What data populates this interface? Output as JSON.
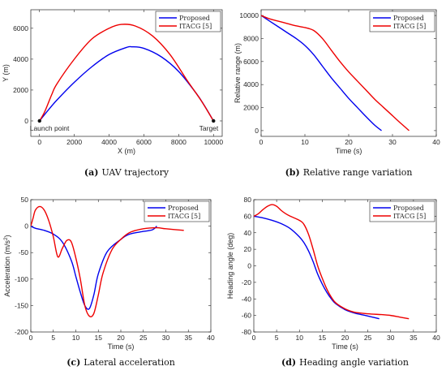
{
  "colors": {
    "proposed": "#0000ee",
    "itacg": "#ee0000"
  },
  "chart_data": [
    {
      "id": "a",
      "type": "line",
      "caption_letter": "(a)",
      "caption_text": "UAV trajectory",
      "xlabel": "X (m)",
      "ylabel": "Y (m)",
      "xlim": [
        -500,
        10500
      ],
      "ylim": [
        -1000,
        7200
      ],
      "xticks": [
        0,
        2000,
        4000,
        6000,
        8000,
        10000
      ],
      "yticks": [
        0,
        2000,
        4000,
        6000
      ],
      "legend": "top-right",
      "series": [
        {
          "name": "Proposed",
          "color_key": "proposed",
          "x": [
            0,
            500,
            1000,
            2000,
            3000,
            4000,
            5000,
            5300,
            6000,
            7000,
            8000,
            9000,
            9500,
            10000
          ],
          "y": [
            0,
            700,
            1350,
            2500,
            3500,
            4300,
            4760,
            4800,
            4700,
            4150,
            3200,
            1800,
            950,
            0
          ]
        },
        {
          "name": "ITACG [5]",
          "color_key": "itacg",
          "x": [
            0,
            300,
            700,
            1000,
            2000,
            3000,
            4000,
            4700,
            5500,
            6500,
            7500,
            8500,
            9300,
            10000
          ],
          "y": [
            0,
            600,
            1700,
            2400,
            4000,
            5300,
            6000,
            6250,
            6150,
            5500,
            4300,
            2600,
            1300,
            0
          ]
        }
      ],
      "annotations": [
        {
          "text": "Launch point",
          "x": 0,
          "y": 0,
          "anchor": "below-right"
        },
        {
          "text": "Target",
          "x": 10000,
          "y": 0,
          "anchor": "below-left"
        }
      ]
    },
    {
      "id": "b",
      "type": "line",
      "caption_letter": "(b)",
      "caption_text": "Relative range variation",
      "xlabel": "Time (s)",
      "ylabel": "Relative range (m)",
      "xlim": [
        0,
        40
      ],
      "ylim": [
        -500,
        10500
      ],
      "xticks": [
        0,
        10,
        20,
        30,
        40
      ],
      "yticks": [
        0,
        2000,
        4000,
        6000,
        8000,
        10000
      ],
      "legend": "top-right",
      "series": [
        {
          "name": "Proposed",
          "color_key": "proposed",
          "x": [
            0,
            2,
            4,
            6,
            8,
            10,
            12,
            14,
            16,
            18,
            20,
            22,
            24,
            26,
            27.5
          ],
          "y": [
            10000,
            9500,
            9000,
            8500,
            8000,
            7400,
            6600,
            5600,
            4600,
            3700,
            2800,
            2000,
            1200,
            450,
            0
          ]
        },
        {
          "name": "ITACG [5]",
          "color_key": "itacg",
          "x": [
            0,
            2,
            4,
            6,
            8,
            10,
            12,
            14,
            16,
            18,
            20,
            22,
            24,
            26,
            28,
            30,
            32,
            33.8
          ],
          "y": [
            10000,
            9700,
            9500,
            9300,
            9100,
            8950,
            8700,
            8000,
            7000,
            6000,
            5100,
            4300,
            3500,
            2700,
            2000,
            1300,
            600,
            0
          ]
        }
      ]
    },
    {
      "id": "c",
      "type": "line",
      "caption_letter": "(c)",
      "caption_text": "Lateral acceleration",
      "xlabel": "Time (s)",
      "ylabel": "Acceleration (m/s",
      "ylabel_sup": "2",
      "ylabel_end": ")",
      "xlim": [
        0,
        40
      ],
      "ylim": [
        -200,
        50
      ],
      "xticks": [
        0,
        5,
        10,
        15,
        20,
        25,
        30,
        35,
        40
      ],
      "yticks": [
        -200,
        -150,
        -100,
        -50,
        0,
        50
      ],
      "legend": "top-right",
      "series": [
        {
          "name": "Proposed",
          "color_key": "proposed",
          "x": [
            0,
            1,
            3,
            5,
            7,
            9,
            10,
            11,
            12,
            13,
            14,
            15,
            17,
            20,
            22,
            25,
            27,
            28
          ],
          "y": [
            0,
            -4,
            -8,
            -15,
            -30,
            -65,
            -95,
            -125,
            -150,
            -156,
            -130,
            -90,
            -48,
            -25,
            -15,
            -10,
            -7,
            0
          ]
        },
        {
          "name": "ITACG [5]",
          "color_key": "itacg",
          "x": [
            0,
            0.5,
            1,
            2,
            3,
            4,
            5,
            6,
            7,
            8,
            9,
            10,
            11,
            12,
            13,
            14,
            15,
            16,
            18,
            20,
            22,
            25,
            28,
            30,
            34
          ],
          "y": [
            0,
            15,
            30,
            37,
            30,
            10,
            -20,
            -58,
            -42,
            -27,
            -30,
            -60,
            -100,
            -150,
            -170,
            -165,
            -130,
            -90,
            -45,
            -25,
            -12,
            -5,
            -3,
            -5,
            -8
          ]
        }
      ]
    },
    {
      "id": "d",
      "type": "line",
      "caption_letter": "(d)",
      "caption_text": "Heading angle variation",
      "xlabel": "Time (s)",
      "ylabel": "Heading angle (deg)",
      "xlim": [
        0,
        40
      ],
      "ylim": [
        -80,
        80
      ],
      "xticks": [
        0,
        5,
        10,
        15,
        20,
        25,
        30,
        35,
        40
      ],
      "yticks": [
        -80,
        -60,
        -40,
        -20,
        0,
        20,
        40,
        60,
        80
      ],
      "legend": "top-right",
      "series": [
        {
          "name": "Proposed",
          "color_key": "proposed",
          "x": [
            0,
            2,
            4,
            6,
            8,
            10,
            11,
            12,
            13,
            14,
            15,
            16,
            17,
            18,
            20,
            22,
            24,
            26,
            27.5
          ],
          "y": [
            60,
            58,
            55,
            51,
            45,
            35,
            28,
            18,
            5,
            -10,
            -22,
            -32,
            -40,
            -46,
            -53,
            -57,
            -59.5,
            -62,
            -64
          ]
        },
        {
          "name": "ITACG [5]",
          "color_key": "itacg",
          "x": [
            0,
            1,
            2,
            3,
            4,
            5,
            6,
            7,
            8,
            10,
            11,
            12,
            13,
            14,
            15,
            16,
            17,
            18,
            20,
            22,
            25,
            28,
            30,
            32,
            34
          ],
          "y": [
            60,
            63,
            68,
            72,
            74,
            72,
            67,
            63,
            60,
            55,
            50,
            38,
            20,
            0,
            -15,
            -28,
            -38,
            -45,
            -52,
            -56,
            -58,
            -59,
            -60,
            -62,
            -64
          ]
        }
      ]
    }
  ]
}
